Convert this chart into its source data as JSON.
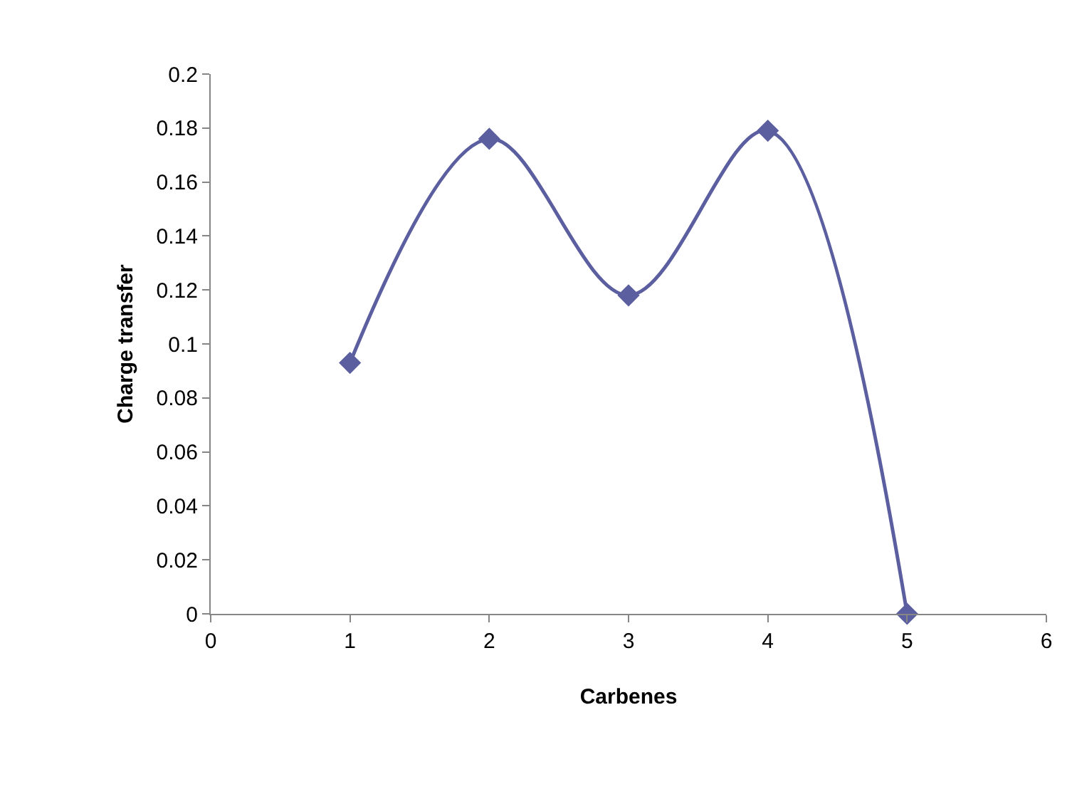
{
  "chart_data": {
    "type": "line",
    "xlabel": "Carbenes",
    "ylabel": "Charge transfer",
    "x": [
      1,
      2,
      3,
      4,
      5
    ],
    "series": [
      {
        "color": "#5b5e9f",
        "values": [
          0.093,
          0.176,
          0.118,
          0.179,
          0
        ]
      }
    ],
    "xlim": [
      0,
      6
    ],
    "xticks": [
      0,
      1,
      2,
      3,
      4,
      5,
      6
    ],
    "ylim": [
      0,
      0.2
    ],
    "yticks": [
      0,
      0.02,
      0.04,
      0.06,
      0.08,
      0.1,
      0.12,
      0.14,
      0.16,
      0.18,
      0.2
    ],
    "marker": "diamond",
    "line_style": "solid",
    "legend": false
  }
}
